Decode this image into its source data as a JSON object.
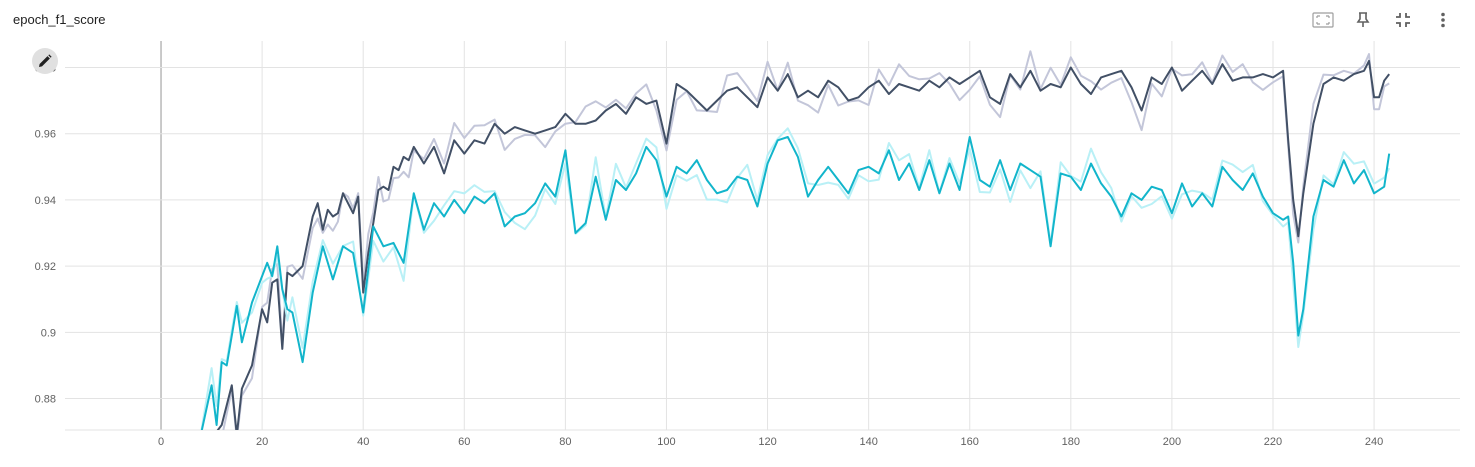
{
  "header": {
    "title": "epoch_f1_score",
    "icons": [
      "fit-screen-icon",
      "pin-icon",
      "fullscreen-exit-icon",
      "more-vert-icon"
    ]
  },
  "colors": {
    "train_smoothed": "#425066",
    "train_raw": "#c3c6d9",
    "validation_smoothed": "#12b5cb",
    "validation_raw": "#b9f0f6",
    "grid": "#e3e3e3",
    "zero_axis": "#bdbdbd"
  },
  "chart_data": {
    "type": "line",
    "title": "epoch_f1_score",
    "xlabel": "",
    "ylabel": "",
    "xlim": [
      -19,
      257
    ],
    "ylim": [
      0.8705,
      0.988
    ],
    "x_ticks": [
      0,
      20,
      40,
      60,
      80,
      100,
      120,
      140,
      160,
      180,
      200,
      220,
      240
    ],
    "y_ticks": [
      0.88,
      0.9,
      0.92,
      0.94,
      0.96,
      0.98
    ],
    "y_tick_labels": [
      "0.88",
      "0.9",
      "0.92",
      "0.94",
      "0.96",
      "0.98"
    ],
    "grid": true,
    "legend": "none",
    "series": [
      {
        "key": "train",
        "x": [
          10,
          12,
          14,
          15,
          16,
          18,
          20,
          21,
          22,
          23,
          24,
          25,
          26,
          28,
          30,
          31,
          32,
          33,
          34,
          35,
          36,
          37,
          38,
          39,
          40,
          41,
          42,
          43,
          44,
          45,
          46,
          47,
          48,
          49,
          50,
          52,
          54,
          56,
          58,
          60,
          62,
          64,
          66,
          68,
          70,
          72,
          74,
          76,
          78,
          80,
          82,
          84,
          86,
          88,
          90,
          92,
          94,
          96,
          98,
          100,
          102,
          104,
          106,
          108,
          110,
          112,
          114,
          116,
          118,
          120,
          122,
          124,
          126,
          128,
          130,
          132,
          134,
          136,
          138,
          140,
          142,
          144,
          146,
          148,
          150,
          152,
          154,
          156,
          158,
          160,
          162,
          164,
          166,
          168,
          170,
          172,
          174,
          176,
          178,
          180,
          182,
          184,
          186,
          188,
          190,
          192,
          194,
          196,
          198,
          200,
          202,
          204,
          206,
          208,
          210,
          212,
          214,
          216,
          218,
          220,
          222,
          223,
          224,
          225,
          226,
          228,
          230,
          232,
          234,
          236,
          238,
          239,
          240,
          241,
          242,
          243
        ],
        "y": [
          0.868,
          0.872,
          0.884,
          0.869,
          0.883,
          0.89,
          0.907,
          0.903,
          0.915,
          0.916,
          0.895,
          0.918,
          0.917,
          0.92,
          0.935,
          0.939,
          0.931,
          0.937,
          0.935,
          0.936,
          0.942,
          0.939,
          0.936,
          0.941,
          0.912,
          0.924,
          0.933,
          0.943,
          0.944,
          0.943,
          0.95,
          0.949,
          0.953,
          0.952,
          0.956,
          0.951,
          0.956,
          0.948,
          0.958,
          0.954,
          0.958,
          0.957,
          0.963,
          0.96,
          0.962,
          0.961,
          0.96,
          0.961,
          0.962,
          0.966,
          0.963,
          0.963,
          0.964,
          0.967,
          0.969,
          0.966,
          0.971,
          0.969,
          0.97,
          0.957,
          0.975,
          0.973,
          0.97,
          0.967,
          0.97,
          0.973,
          0.974,
          0.971,
          0.968,
          0.977,
          0.973,
          0.978,
          0.971,
          0.973,
          0.971,
          0.976,
          0.974,
          0.97,
          0.971,
          0.974,
          0.976,
          0.972,
          0.975,
          0.974,
          0.973,
          0.976,
          0.974,
          0.977,
          0.975,
          0.977,
          0.979,
          0.971,
          0.969,
          0.978,
          0.974,
          0.979,
          0.973,
          0.975,
          0.974,
          0.98,
          0.975,
          0.972,
          0.977,
          0.978,
          0.979,
          0.974,
          0.967,
          0.977,
          0.975,
          0.98,
          0.973,
          0.976,
          0.979,
          0.975,
          0.981,
          0.976,
          0.977,
          0.977,
          0.978,
          0.977,
          0.979,
          0.958,
          0.94,
          0.929,
          0.942,
          0.963,
          0.975,
          0.977,
          0.976,
          0.978,
          0.979,
          0.982,
          0.971,
          0.971,
          0.976,
          0.978
        ]
      },
      {
        "key": "validation",
        "x": [
          8,
          10,
          11,
          12,
          13,
          14,
          15,
          16,
          18,
          20,
          21,
          22,
          23,
          24,
          25,
          26,
          28,
          30,
          32,
          34,
          36,
          38,
          40,
          42,
          44,
          46,
          48,
          50,
          52,
          54,
          56,
          58,
          60,
          62,
          64,
          66,
          68,
          70,
          72,
          74,
          76,
          78,
          80,
          82,
          84,
          86,
          88,
          90,
          92,
          94,
          96,
          98,
          100,
          102,
          104,
          106,
          108,
          110,
          112,
          114,
          116,
          118,
          120,
          122,
          124,
          126,
          128,
          130,
          132,
          134,
          136,
          138,
          140,
          142,
          144,
          146,
          148,
          150,
          152,
          154,
          156,
          158,
          160,
          162,
          164,
          166,
          168,
          170,
          172,
          174,
          176,
          178,
          180,
          182,
          184,
          186,
          188,
          190,
          192,
          194,
          196,
          198,
          200,
          202,
          204,
          206,
          208,
          210,
          212,
          214,
          216,
          218,
          220,
          222,
          223,
          224,
          225,
          226,
          228,
          230,
          232,
          234,
          236,
          238,
          240,
          242,
          243
        ],
        "y": [
          0.87,
          0.884,
          0.872,
          0.891,
          0.89,
          0.899,
          0.908,
          0.897,
          0.909,
          0.917,
          0.921,
          0.917,
          0.926,
          0.913,
          0.907,
          0.906,
          0.891,
          0.912,
          0.926,
          0.916,
          0.926,
          0.924,
          0.906,
          0.932,
          0.926,
          0.927,
          0.921,
          0.942,
          0.931,
          0.939,
          0.935,
          0.94,
          0.936,
          0.941,
          0.939,
          0.942,
          0.932,
          0.935,
          0.936,
          0.939,
          0.945,
          0.941,
          0.955,
          0.93,
          0.933,
          0.947,
          0.934,
          0.946,
          0.943,
          0.948,
          0.956,
          0.952,
          0.941,
          0.95,
          0.948,
          0.952,
          0.946,
          0.942,
          0.943,
          0.947,
          0.946,
          0.938,
          0.951,
          0.958,
          0.959,
          0.953,
          0.941,
          0.946,
          0.95,
          0.946,
          0.942,
          0.949,
          0.95,
          0.948,
          0.955,
          0.946,
          0.951,
          0.943,
          0.952,
          0.942,
          0.951,
          0.943,
          0.959,
          0.946,
          0.944,
          0.952,
          0.943,
          0.951,
          0.949,
          0.947,
          0.926,
          0.948,
          0.947,
          0.943,
          0.951,
          0.945,
          0.941,
          0.935,
          0.942,
          0.94,
          0.944,
          0.943,
          0.936,
          0.945,
          0.938,
          0.942,
          0.938,
          0.95,
          0.946,
          0.943,
          0.948,
          0.941,
          0.936,
          0.934,
          0.935,
          0.921,
          0.899,
          0.907,
          0.935,
          0.946,
          0.944,
          0.952,
          0.945,
          0.949,
          0.942,
          0.944,
          0.954
        ]
      }
    ]
  }
}
